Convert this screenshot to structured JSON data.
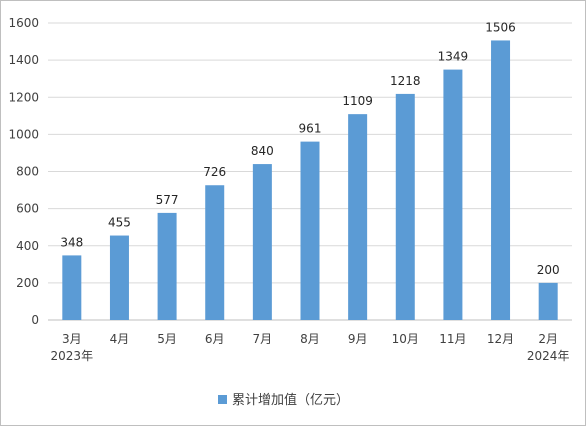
{
  "chart_data": {
    "type": "bar",
    "categories": [
      {
        "month": "3月",
        "year": "2023年"
      },
      {
        "month": "4月",
        "year": ""
      },
      {
        "month": "5月",
        "year": ""
      },
      {
        "month": "6月",
        "year": ""
      },
      {
        "month": "7月",
        "year": ""
      },
      {
        "month": "8月",
        "year": ""
      },
      {
        "month": "9月",
        "year": ""
      },
      {
        "month": "10月",
        "year": ""
      },
      {
        "month": "11月",
        "year": ""
      },
      {
        "month": "12月",
        "year": ""
      },
      {
        "month": "2月",
        "year": "2024年"
      }
    ],
    "series": [
      {
        "name": "累计增加值（亿元）",
        "values": [
          348,
          455,
          577,
          726,
          840,
          961,
          1109,
          1218,
          1349,
          1506,
          200
        ],
        "color": "#5b9bd5"
      }
    ],
    "ylim": [
      0,
      1600
    ],
    "yticks": [
      0,
      200,
      400,
      600,
      800,
      1000,
      1200,
      1400,
      1600
    ],
    "grid": true,
    "gridColor": "#d9d9d9",
    "data_labels": true,
    "legend": "bottom"
  }
}
